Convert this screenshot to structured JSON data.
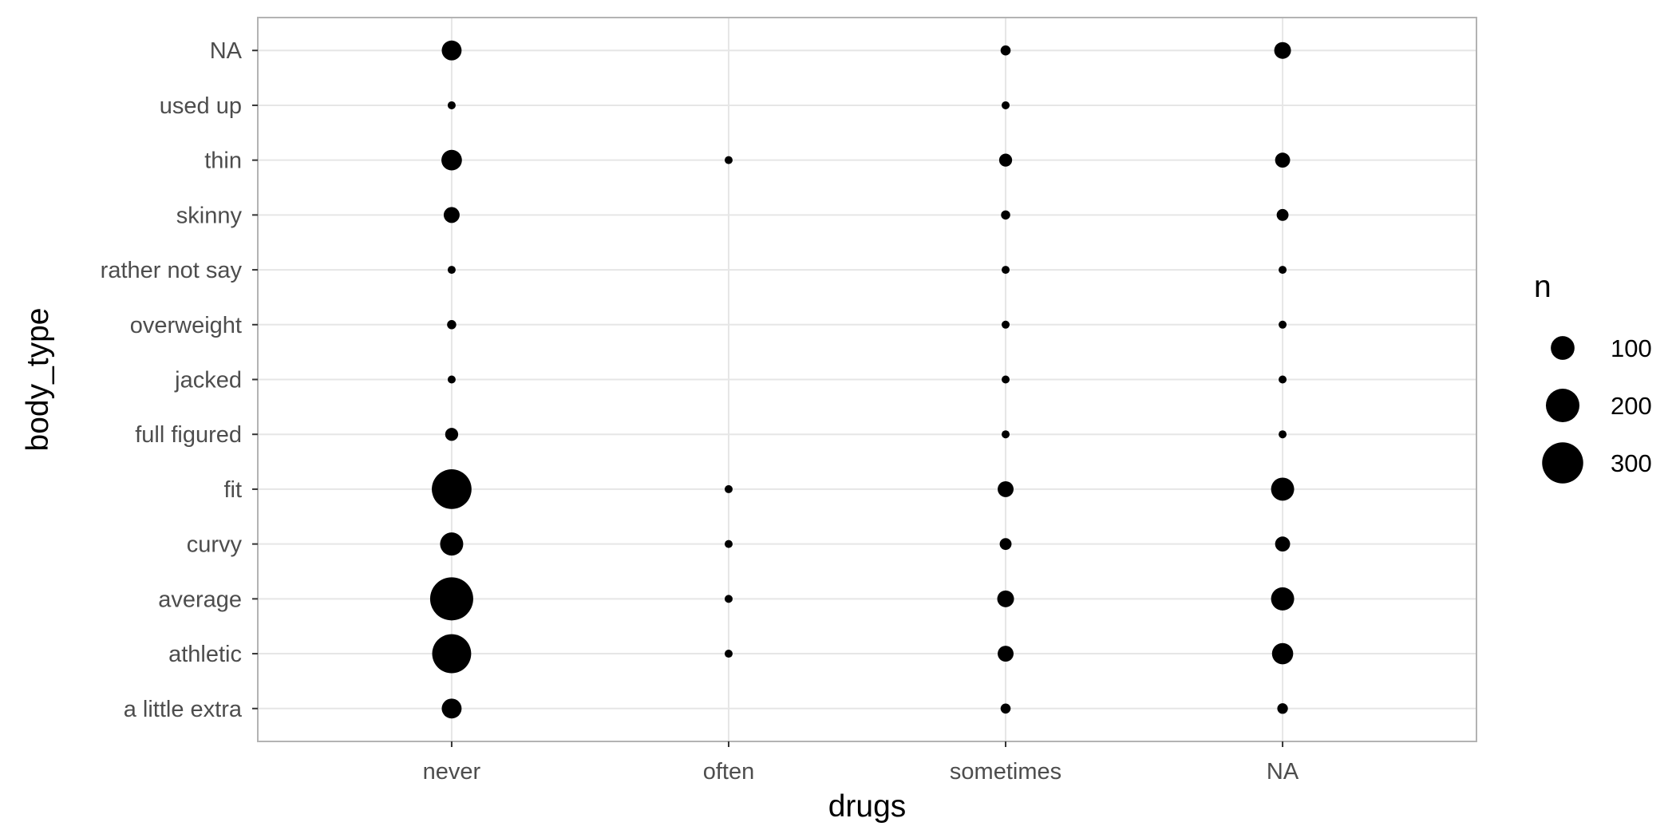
{
  "chart_data": {
    "type": "scatter",
    "title": "",
    "xlabel": "drugs",
    "ylabel": "body_type",
    "x_categories": [
      "never",
      "often",
      "sometimes",
      "NA"
    ],
    "y_categories": [
      "a little extra",
      "athletic",
      "average",
      "curvy",
      "fit",
      "full figured",
      "jacked",
      "overweight",
      "rather not say",
      "skinny",
      "thin",
      "used up",
      "NA"
    ],
    "size_variable": "n",
    "legend": {
      "title": "n",
      "placement": "right",
      "breaks": [
        100,
        200,
        300
      ],
      "labels": [
        "100",
        "200",
        "300"
      ]
    },
    "grid": true,
    "point_color": "#000000",
    "points": [
      {
        "x": "never",
        "y": "NA",
        "n": 70
      },
      {
        "x": "never",
        "y": "used up",
        "n": 10
      },
      {
        "x": "never",
        "y": "thin",
        "n": 75
      },
      {
        "x": "never",
        "y": "skinny",
        "n": 45
      },
      {
        "x": "never",
        "y": "rather not say",
        "n": 8
      },
      {
        "x": "never",
        "y": "overweight",
        "n": 15
      },
      {
        "x": "never",
        "y": "jacked",
        "n": 10
      },
      {
        "x": "never",
        "y": "full figured",
        "n": 30
      },
      {
        "x": "never",
        "y": "fit",
        "n": 280
      },
      {
        "x": "never",
        "y": "curvy",
        "n": 95
      },
      {
        "x": "never",
        "y": "average",
        "n": 330
      },
      {
        "x": "never",
        "y": "athletic",
        "n": 270
      },
      {
        "x": "never",
        "y": "a little extra",
        "n": 70
      },
      {
        "x": "often",
        "y": "thin",
        "n": 2
      },
      {
        "x": "often",
        "y": "fit",
        "n": 8
      },
      {
        "x": "often",
        "y": "curvy",
        "n": 3
      },
      {
        "x": "often",
        "y": "average",
        "n": 7
      },
      {
        "x": "often",
        "y": "athletic",
        "n": 2
      },
      {
        "x": "sometimes",
        "y": "NA",
        "n": 18
      },
      {
        "x": "sometimes",
        "y": "used up",
        "n": 8
      },
      {
        "x": "sometimes",
        "y": "thin",
        "n": 30
      },
      {
        "x": "sometimes",
        "y": "skinny",
        "n": 15
      },
      {
        "x": "sometimes",
        "y": "rather not say",
        "n": 2
      },
      {
        "x": "sometimes",
        "y": "overweight",
        "n": 8
      },
      {
        "x": "sometimes",
        "y": "jacked",
        "n": 6
      },
      {
        "x": "sometimes",
        "y": "full figured",
        "n": 10
      },
      {
        "x": "sometimes",
        "y": "fit",
        "n": 45
      },
      {
        "x": "sometimes",
        "y": "curvy",
        "n": 25
      },
      {
        "x": "sometimes",
        "y": "average",
        "n": 50
      },
      {
        "x": "sometimes",
        "y": "athletic",
        "n": 45
      },
      {
        "x": "sometimes",
        "y": "a little extra",
        "n": 18
      },
      {
        "x": "NA",
        "y": "NA",
        "n": 50
      },
      {
        "x": "NA",
        "y": "thin",
        "n": 40
      },
      {
        "x": "NA",
        "y": "skinny",
        "n": 25
      },
      {
        "x": "NA",
        "y": "rather not say",
        "n": 3
      },
      {
        "x": "NA",
        "y": "overweight",
        "n": 7
      },
      {
        "x": "NA",
        "y": "jacked",
        "n": 5
      },
      {
        "x": "NA",
        "y": "full figured",
        "n": 7
      },
      {
        "x": "NA",
        "y": "fit",
        "n": 95
      },
      {
        "x": "NA",
        "y": "curvy",
        "n": 40
      },
      {
        "x": "NA",
        "y": "average",
        "n": 95
      },
      {
        "x": "NA",
        "y": "athletic",
        "n": 80
      },
      {
        "x": "NA",
        "y": "a little extra",
        "n": 20
      }
    ]
  }
}
